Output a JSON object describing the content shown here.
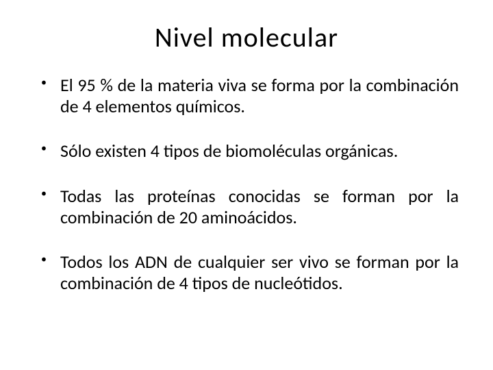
{
  "background_color": "#ffffff",
  "text_color": "#000000",
  "title": {
    "text": "Nivel  molecular",
    "fontsize": 40,
    "align": "center",
    "weight": "normal"
  },
  "bullets": {
    "fontsize": 26,
    "marker": "•",
    "marker_fontsize": 16,
    "text_align": "justify",
    "items": [
      "El 95 % de la materia viva se forma por la combinación de 4 elementos químicos.",
      "Sólo existen 4 tipos de biomoléculas orgánicas.",
      "Todas las proteínas conocidas se forman por la combinación de 20 aminoácidos.",
      "Todos los ADN de cualquier ser vivo se forman por la combinación de 4 tipos de nucleótidos."
    ]
  }
}
